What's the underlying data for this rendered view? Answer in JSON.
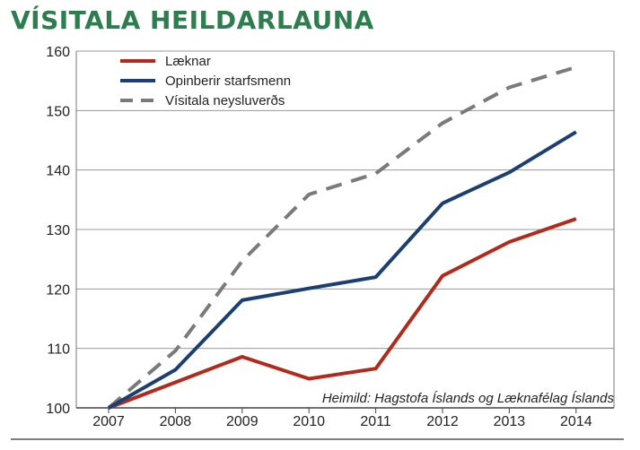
{
  "header": {
    "title": "VÍSITALA HEILDARLAUNA"
  },
  "chart_data": {
    "type": "line",
    "title": "VÍSITALA HEILDARLAUNA",
    "xlabel": "",
    "ylabel": "",
    "categories": [
      "2007",
      "2008",
      "2009",
      "2010",
      "2011",
      "2012",
      "2013",
      "2014"
    ],
    "ylim": [
      100,
      160
    ],
    "yticks": [
      100,
      110,
      120,
      130,
      140,
      150,
      160
    ],
    "grid": true,
    "legend_position": "top-left",
    "source": "Heimild: Hagstofa Íslands og Læknafélag Íslands",
    "series": [
      {
        "name": "Læknar",
        "color": "#b22a1c",
        "dash": false,
        "values": [
          100,
          104.3,
          108.6,
          104.9,
          106.6,
          122.2,
          127.9,
          131.8
        ]
      },
      {
        "name": "Opinberir starfsmenn",
        "color": "#1b3f73",
        "dash": false,
        "values": [
          100,
          106.4,
          118.1,
          120.1,
          122.0,
          134.4,
          139.6,
          146.4
        ]
      },
      {
        "name": "Vísitala neysluverðs",
        "color": "#7a7a7a",
        "dash": true,
        "values": [
          100,
          109.6,
          124.7,
          135.9,
          139.4,
          147.9,
          153.9,
          157.3
        ]
      }
    ]
  }
}
